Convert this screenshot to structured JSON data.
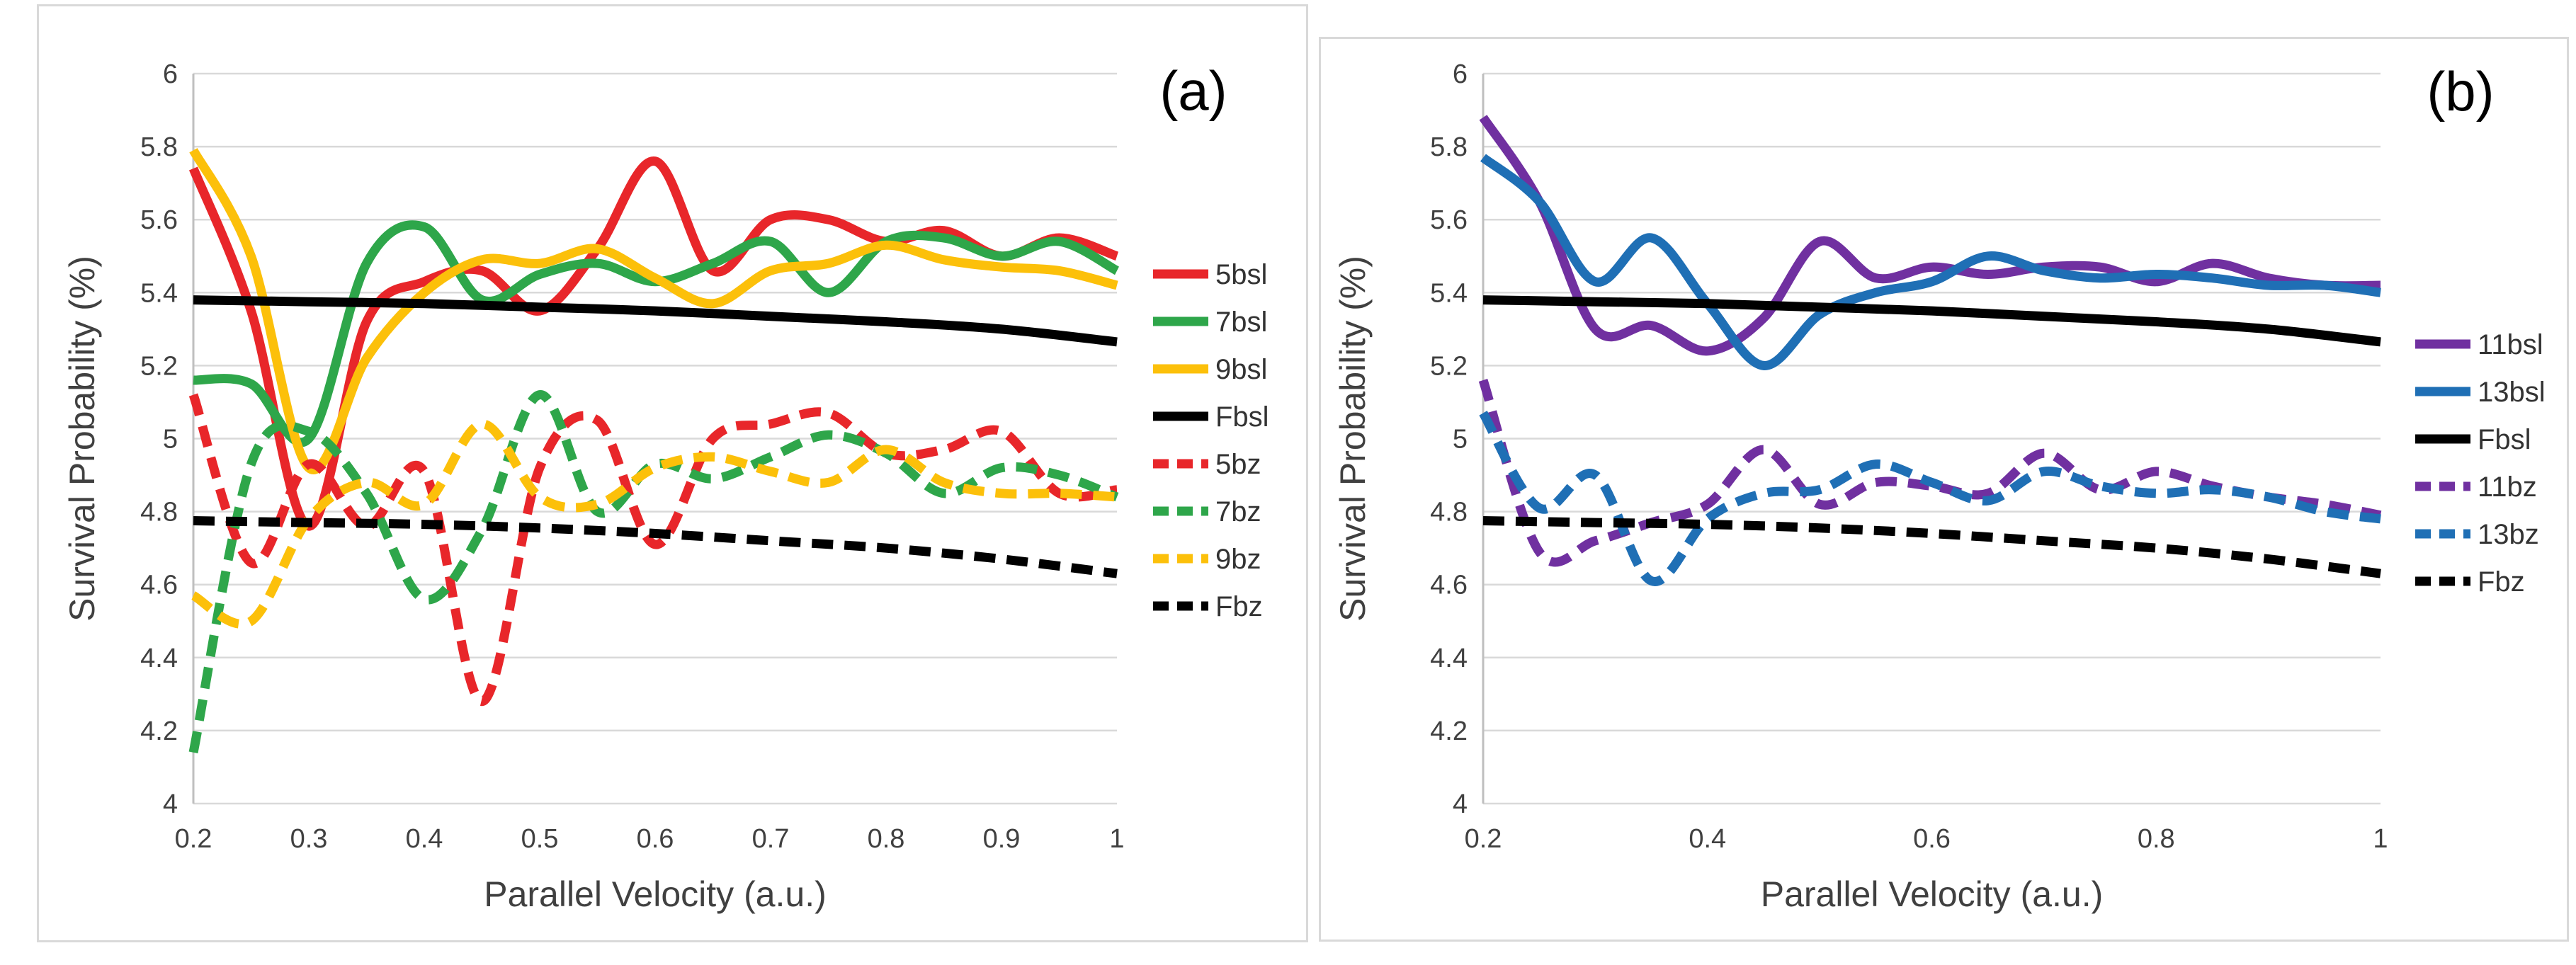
{
  "chart_data": [
    {
      "type": "line",
      "panel_label": "(a)",
      "xlabel": "Parallel Velocity (a.u.)",
      "ylabel": "Survival Probability (%)",
      "xlim": [
        0.2,
        1.0
      ],
      "ylim": [
        4.0,
        6.0
      ],
      "xticks": [
        0.2,
        0.3,
        0.4,
        0.5,
        0.6,
        0.7,
        0.8,
        0.9,
        1.0
      ],
      "xtick_labels": [
        "0.2",
        "0.3",
        "0.4",
        "0.5",
        "0.6",
        "0.7",
        "0.8",
        "0.9",
        "1"
      ],
      "yticks": [
        4.0,
        4.2,
        4.4,
        4.6,
        4.8,
        5.0,
        5.2,
        5.4,
        5.6,
        5.8,
        6.0
      ],
      "ytick_labels": [
        "4",
        "4.2",
        "4.4",
        "4.6",
        "4.8",
        "5",
        "5.2",
        "5.4",
        "5.6",
        "5.8",
        "6"
      ],
      "grid": "horizontal",
      "legend_position": "right",
      "series": [
        {
          "name": "5bsl",
          "color": "#e8262a",
          "style": "solid",
          "x": [
            0.2,
            0.25,
            0.3,
            0.35,
            0.4,
            0.45,
            0.5,
            0.55,
            0.6,
            0.65,
            0.7,
            0.75,
            0.8,
            0.85,
            0.9,
            0.95,
            1.0
          ],
          "y": [
            5.74,
            5.35,
            4.76,
            5.32,
            5.43,
            5.46,
            5.35,
            5.52,
            5.76,
            5.46,
            5.6,
            5.6,
            5.54,
            5.57,
            5.5,
            5.55,
            5.5
          ]
        },
        {
          "name": "7bsl",
          "color": "#2ea64a",
          "style": "solid",
          "x": [
            0.2,
            0.25,
            0.3,
            0.35,
            0.4,
            0.45,
            0.5,
            0.55,
            0.6,
            0.65,
            0.7,
            0.75,
            0.8,
            0.85,
            0.9,
            0.95,
            1.0
          ],
          "y": [
            5.16,
            5.15,
            5.0,
            5.48,
            5.58,
            5.38,
            5.45,
            5.48,
            5.43,
            5.48,
            5.54,
            5.4,
            5.54,
            5.55,
            5.5,
            5.54,
            5.46
          ]
        },
        {
          "name": "9bsl",
          "color": "#fcc00a",
          "style": "solid",
          "x": [
            0.2,
            0.25,
            0.3,
            0.35,
            0.4,
            0.45,
            0.5,
            0.55,
            0.6,
            0.65,
            0.7,
            0.75,
            0.8,
            0.85,
            0.9,
            0.95,
            1.0
          ],
          "y": [
            5.79,
            5.5,
            4.92,
            5.22,
            5.4,
            5.49,
            5.48,
            5.52,
            5.44,
            5.37,
            5.46,
            5.48,
            5.53,
            5.49,
            5.47,
            5.46,
            5.42
          ]
        },
        {
          "name": "Fbsl",
          "color": "#000000",
          "style": "solid",
          "x": [
            0.2,
            0.3,
            0.4,
            0.5,
            0.6,
            0.7,
            0.8,
            0.9,
            1.0
          ],
          "y": [
            5.38,
            5.375,
            5.37,
            5.36,
            5.35,
            5.335,
            5.32,
            5.3,
            5.265
          ]
        },
        {
          "name": "5bz",
          "color": "#e8262a",
          "style": "dashed",
          "x": [
            0.2,
            0.25,
            0.3,
            0.35,
            0.4,
            0.45,
            0.5,
            0.55,
            0.6,
            0.65,
            0.7,
            0.75,
            0.8,
            0.85,
            0.9,
            0.95,
            1.0
          ],
          "y": [
            5.12,
            4.66,
            4.93,
            4.76,
            4.91,
            4.28,
            4.92,
            5.05,
            4.71,
            5.0,
            5.04,
            5.07,
            4.96,
            4.97,
            5.02,
            4.85,
            4.86
          ]
        },
        {
          "name": "7bz",
          "color": "#2ea64a",
          "style": "dashed",
          "x": [
            0.2,
            0.25,
            0.3,
            0.35,
            0.4,
            0.45,
            0.5,
            0.55,
            0.6,
            0.65,
            0.7,
            0.75,
            0.8,
            0.85,
            0.9,
            0.95,
            1.0
          ],
          "y": [
            4.14,
            4.93,
            5.02,
            4.85,
            4.56,
            4.75,
            5.12,
            4.8,
            4.93,
            4.89,
            4.95,
            5.01,
            4.96,
            4.85,
            4.92,
            4.9,
            4.84
          ]
        },
        {
          "name": "9bz",
          "color": "#fcc00a",
          "style": "dashed",
          "x": [
            0.2,
            0.25,
            0.3,
            0.35,
            0.4,
            0.45,
            0.5,
            0.55,
            0.6,
            0.65,
            0.7,
            0.75,
            0.8,
            0.85,
            0.9,
            0.95,
            1.0
          ],
          "y": [
            4.57,
            4.5,
            4.78,
            4.88,
            4.82,
            5.04,
            4.84,
            4.82,
            4.92,
            4.95,
            4.91,
            4.88,
            4.97,
            4.88,
            4.85,
            4.85,
            4.84
          ]
        },
        {
          "name": "Fbz",
          "color": "#000000",
          "style": "dashed",
          "x": [
            0.2,
            0.3,
            0.4,
            0.5,
            0.6,
            0.7,
            0.8,
            0.9,
            1.0
          ],
          "y": [
            4.775,
            4.77,
            4.765,
            4.755,
            4.74,
            4.72,
            4.7,
            4.67,
            4.63
          ]
        }
      ]
    },
    {
      "type": "line",
      "panel_label": "(b)",
      "xlabel": "Parallel Velocity (a.u.)",
      "ylabel": "Survival Probability (%)",
      "xlim": [
        0.2,
        1.0
      ],
      "ylim": [
        4.0,
        6.0
      ],
      "xticks": [
        0.2,
        0.4,
        0.6,
        0.8,
        1.0
      ],
      "xtick_labels": [
        "0.2",
        "0.4",
        "0.6",
        "0.8",
        "1"
      ],
      "yticks": [
        4.0,
        4.2,
        4.4,
        4.6,
        4.8,
        5.0,
        5.2,
        5.4,
        5.6,
        5.8,
        6.0
      ],
      "ytick_labels": [
        "4",
        "4.2",
        "4.4",
        "4.6",
        "4.8",
        "5",
        "5.2",
        "5.4",
        "5.6",
        "5.8",
        "6"
      ],
      "grid": "horizontal",
      "legend_position": "right",
      "series": [
        {
          "name": "11bsl",
          "color": "#7030a0",
          "style": "solid",
          "x": [
            0.2,
            0.25,
            0.3,
            0.35,
            0.4,
            0.45,
            0.5,
            0.55,
            0.6,
            0.65,
            0.7,
            0.75,
            0.8,
            0.85,
            0.9,
            0.95,
            1.0
          ],
          "y": [
            5.88,
            5.65,
            5.3,
            5.31,
            5.24,
            5.33,
            5.54,
            5.44,
            5.47,
            5.45,
            5.47,
            5.47,
            5.43,
            5.48,
            5.44,
            5.42,
            5.42
          ]
        },
        {
          "name": "13bsl",
          "color": "#1f6fb5",
          "style": "solid",
          "x": [
            0.2,
            0.25,
            0.3,
            0.35,
            0.4,
            0.45,
            0.5,
            0.55,
            0.6,
            0.65,
            0.7,
            0.75,
            0.8,
            0.85,
            0.9,
            0.95,
            1.0
          ],
          "y": [
            5.77,
            5.65,
            5.43,
            5.55,
            5.37,
            5.2,
            5.34,
            5.4,
            5.43,
            5.5,
            5.46,
            5.44,
            5.45,
            5.44,
            5.42,
            5.42,
            5.4
          ]
        },
        {
          "name": "Fbsl",
          "color": "#000000",
          "style": "solid",
          "x": [
            0.2,
            0.3,
            0.4,
            0.5,
            0.6,
            0.7,
            0.8,
            0.9,
            1.0
          ],
          "y": [
            5.38,
            5.375,
            5.37,
            5.36,
            5.35,
            5.335,
            5.32,
            5.3,
            5.265
          ]
        },
        {
          "name": "11bz",
          "color": "#7030a0",
          "style": "dashed",
          "x": [
            0.2,
            0.25,
            0.3,
            0.35,
            0.4,
            0.45,
            0.5,
            0.55,
            0.6,
            0.65,
            0.7,
            0.75,
            0.8,
            0.85,
            0.9,
            0.95,
            1.0
          ],
          "y": [
            5.16,
            4.69,
            4.72,
            4.77,
            4.82,
            4.97,
            4.82,
            4.88,
            4.87,
            4.85,
            4.96,
            4.86,
            4.91,
            4.87,
            4.84,
            4.82,
            4.79
          ]
        },
        {
          "name": "13bz",
          "color": "#1f6fb5",
          "style": "dashed",
          "x": [
            0.2,
            0.25,
            0.3,
            0.35,
            0.4,
            0.45,
            0.5,
            0.55,
            0.6,
            0.65,
            0.7,
            0.75,
            0.8,
            0.85,
            0.9,
            0.95,
            1.0
          ],
          "y": [
            5.07,
            4.81,
            4.9,
            4.61,
            4.78,
            4.85,
            4.86,
            4.93,
            4.88,
            4.83,
            4.91,
            4.87,
            4.85,
            4.86,
            4.84,
            4.8,
            4.78
          ]
        },
        {
          "name": "Fbz",
          "color": "#000000",
          "style": "dashed",
          "x": [
            0.2,
            0.3,
            0.4,
            0.5,
            0.6,
            0.7,
            0.8,
            0.9,
            1.0
          ],
          "y": [
            4.775,
            4.77,
            4.765,
            4.755,
            4.74,
            4.72,
            4.7,
            4.67,
            4.63
          ]
        }
      ]
    }
  ]
}
